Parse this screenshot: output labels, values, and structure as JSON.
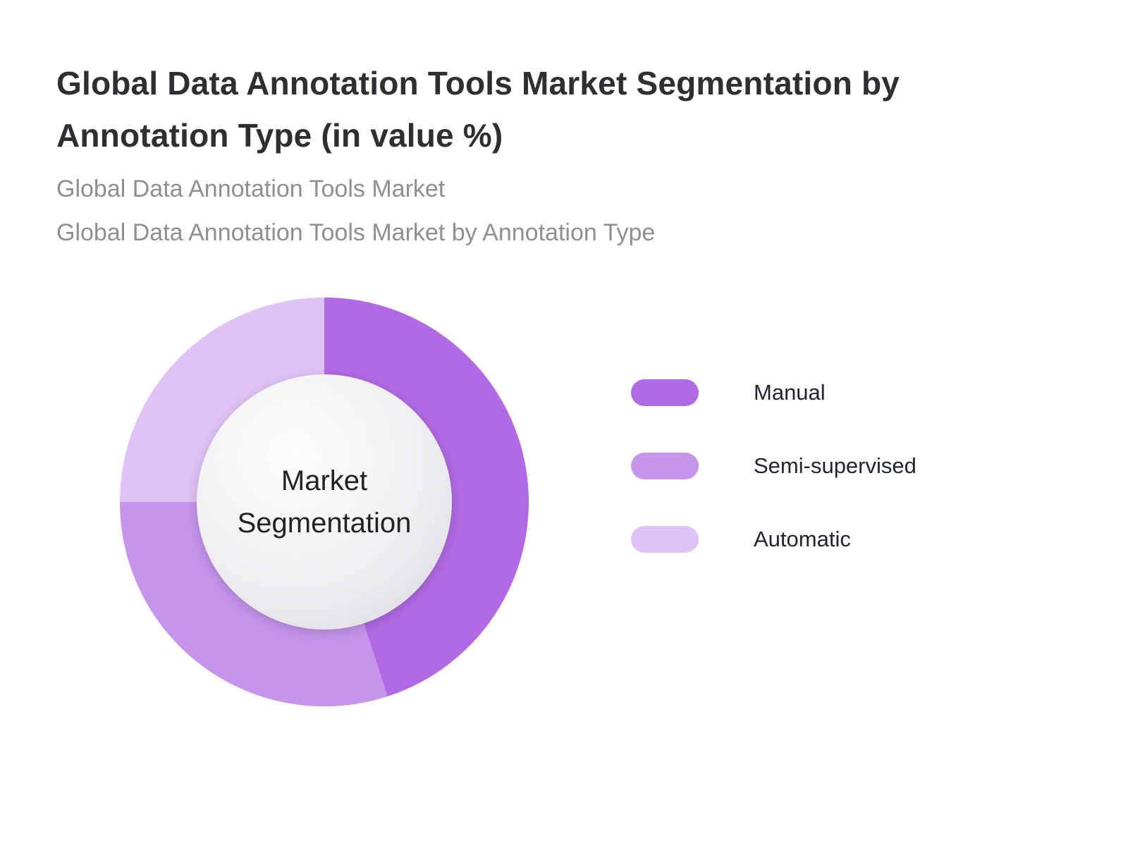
{
  "header": {
    "title": "Global Data Annotation Tools Market Segmentation by Annotation Type (in value %)",
    "subtitle1": "Global Data Annotation Tools Market",
    "subtitle2": "Global Data Annotation Tools Market by Annotation Type"
  },
  "chart_data": {
    "type": "pie",
    "title": "Global Data Annotation Tools Market Segmentation by Annotation Type (in value %)",
    "center_label": "Market Segmentation",
    "legend_position": "right",
    "donut": true,
    "start_angle_deg": 0,
    "direction": "clockwise",
    "series": [
      {
        "name": "Manual",
        "value": 45,
        "color": "#b269e4"
      },
      {
        "name": "Semi-supervised",
        "value": 30,
        "color": "#c595ec"
      },
      {
        "name": "Automatic",
        "value": 25,
        "color": "#e0c2f6"
      }
    ]
  }
}
